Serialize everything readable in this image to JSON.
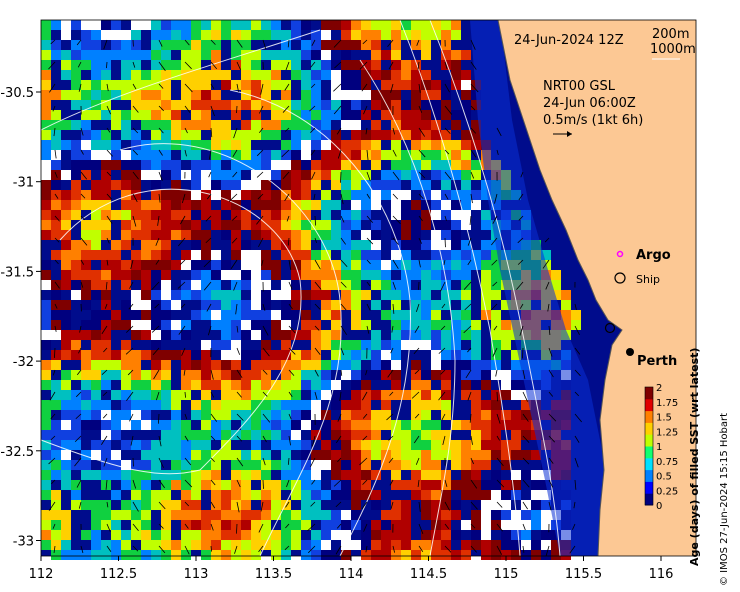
{
  "header": {
    "date": "24-Jun-2024 12Z",
    "contour_200": "200m",
    "contour_1000": "1000m"
  },
  "currents": {
    "source": "NRT00 GSL",
    "time": "24-Jun 06:00Z",
    "scale": "0.5m/s (1kt 6h)"
  },
  "legend": {
    "argo": "Argo",
    "ship": "Ship",
    "argo_color": "#ff00ff"
  },
  "places": {
    "perth": "Perth"
  },
  "axes": {
    "x_ticks": [
      "112",
      "112.5",
      "113",
      "113.5",
      "114",
      "114.5",
      "115",
      "115.5",
      "116"
    ],
    "y_ticks": [
      "-30.5",
      "-31",
      "-31.5",
      "-32",
      "-32.5",
      "-33"
    ]
  },
  "colorbar": {
    "label": "Age (days) of filled SST (wrt latest)",
    "ticks": [
      "2",
      "1.75",
      "1.5",
      "1.25",
      "1",
      "0.75",
      "0.5",
      "0.25",
      "0"
    ],
    "colors": [
      "#00007f",
      "#0000ff",
      "#0080ff",
      "#00e0ff",
      "#10ff70",
      "#c0ff00",
      "#ffd000",
      "#ff8000",
      "#e00000",
      "#7f0000"
    ]
  },
  "credit": "© IMOS 27-Jun-2024 15:15 Hobart",
  "colors": {
    "land": "#fcc894",
    "ocean_deep": "#000c8c",
    "ocean_shelf": "#0a2fd6"
  }
}
